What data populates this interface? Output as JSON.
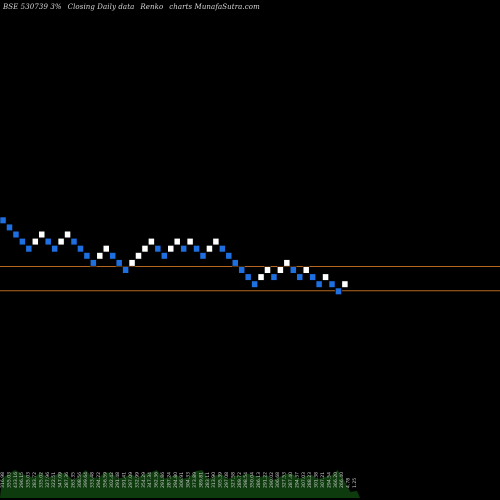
{
  "header": {
    "symbol": "BSE 530739 3%",
    "description": "Closing Daily data",
    "chart_kind": "Renko",
    "site": "charts MunafaSutra.com"
  },
  "colors": {
    "background": "#000000",
    "up_brick": "#ffffff",
    "down_brick": "#1e6fe0",
    "reference_line": "#b5651d",
    "volume_fill": "#0d3b0d"
  },
  "chart_data": {
    "type": "renko",
    "title": "BSE 530739 3% Closing Daily data Renko charts MunafaSutra.com",
    "brick_size_label": "3%",
    "bricks": [
      {
        "level": 19,
        "dir": "down"
      },
      {
        "level": 18,
        "dir": "down"
      },
      {
        "level": 17,
        "dir": "down"
      },
      {
        "level": 16,
        "dir": "down"
      },
      {
        "level": 15,
        "dir": "down"
      },
      {
        "level": 16,
        "dir": "up"
      },
      {
        "level": 17,
        "dir": "up"
      },
      {
        "level": 16,
        "dir": "down"
      },
      {
        "level": 15,
        "dir": "down"
      },
      {
        "level": 16,
        "dir": "up"
      },
      {
        "level": 17,
        "dir": "up"
      },
      {
        "level": 16,
        "dir": "down"
      },
      {
        "level": 15,
        "dir": "down"
      },
      {
        "level": 14,
        "dir": "down"
      },
      {
        "level": 13,
        "dir": "down"
      },
      {
        "level": 14,
        "dir": "up"
      },
      {
        "level": 15,
        "dir": "up"
      },
      {
        "level": 14,
        "dir": "down"
      },
      {
        "level": 13,
        "dir": "down"
      },
      {
        "level": 12,
        "dir": "down"
      },
      {
        "level": 13,
        "dir": "up"
      },
      {
        "level": 14,
        "dir": "up"
      },
      {
        "level": 15,
        "dir": "up"
      },
      {
        "level": 16,
        "dir": "up"
      },
      {
        "level": 15,
        "dir": "down"
      },
      {
        "level": 14,
        "dir": "down"
      },
      {
        "level": 15,
        "dir": "up"
      },
      {
        "level": 16,
        "dir": "up"
      },
      {
        "level": 15,
        "dir": "down"
      },
      {
        "level": 16,
        "dir": "up"
      },
      {
        "level": 15,
        "dir": "down"
      },
      {
        "level": 14,
        "dir": "down"
      },
      {
        "level": 15,
        "dir": "up"
      },
      {
        "level": 16,
        "dir": "up"
      },
      {
        "level": 15,
        "dir": "down"
      },
      {
        "level": 14,
        "dir": "down"
      },
      {
        "level": 13,
        "dir": "down"
      },
      {
        "level": 12,
        "dir": "down"
      },
      {
        "level": 11,
        "dir": "down"
      },
      {
        "level": 10,
        "dir": "down"
      },
      {
        "level": 11,
        "dir": "up"
      },
      {
        "level": 12,
        "dir": "up"
      },
      {
        "level": 11,
        "dir": "down"
      },
      {
        "level": 12,
        "dir": "up"
      },
      {
        "level": 13,
        "dir": "up"
      },
      {
        "level": 12,
        "dir": "down"
      },
      {
        "level": 11,
        "dir": "down"
      },
      {
        "level": 12,
        "dir": "up"
      },
      {
        "level": 11,
        "dir": "down"
      },
      {
        "level": 10,
        "dir": "down"
      },
      {
        "level": 11,
        "dir": "up"
      },
      {
        "level": 10,
        "dir": "down"
      },
      {
        "level": 9,
        "dir": "down"
      },
      {
        "level": 10,
        "dir": "up"
      }
    ],
    "reference_lines": [
      {
        "name": "upper",
        "level": 14.5
      },
      {
        "name": "lower",
        "level": 11.5
      }
    ],
    "volume_labels": [
      "316.98",
      "355.03",
      "433.16",
      "296.15",
      "335.03",
      "283.72",
      "335.02",
      "327.96",
      "322.51",
      "347.09",
      "287.36",
      "263.35",
      "308.56",
      "399.64",
      "333.48",
      "294.22",
      "356.59",
      "302.42",
      "291.48",
      "291.41",
      "297.09",
      "332.99",
      "354.29",
      "347.34",
      "362.36",
      "291.86",
      "287.24",
      "294.80",
      "306.91",
      "304.33",
      "373.89",
      "389.81",
      "283.11",
      "313.90",
      "305.39",
      "297.08",
      "327.58",
      "289.72",
      "298.54",
      "350.04",
      "286.13",
      "291.22",
      "290.02",
      "306.68",
      "327.53",
      "287.40",
      "294.37",
      "307.03",
      "288.23",
      "301.38",
      "307.21",
      "294.54",
      "366.20",
      "266.40",
      "4.78",
      "1.25"
    ]
  }
}
